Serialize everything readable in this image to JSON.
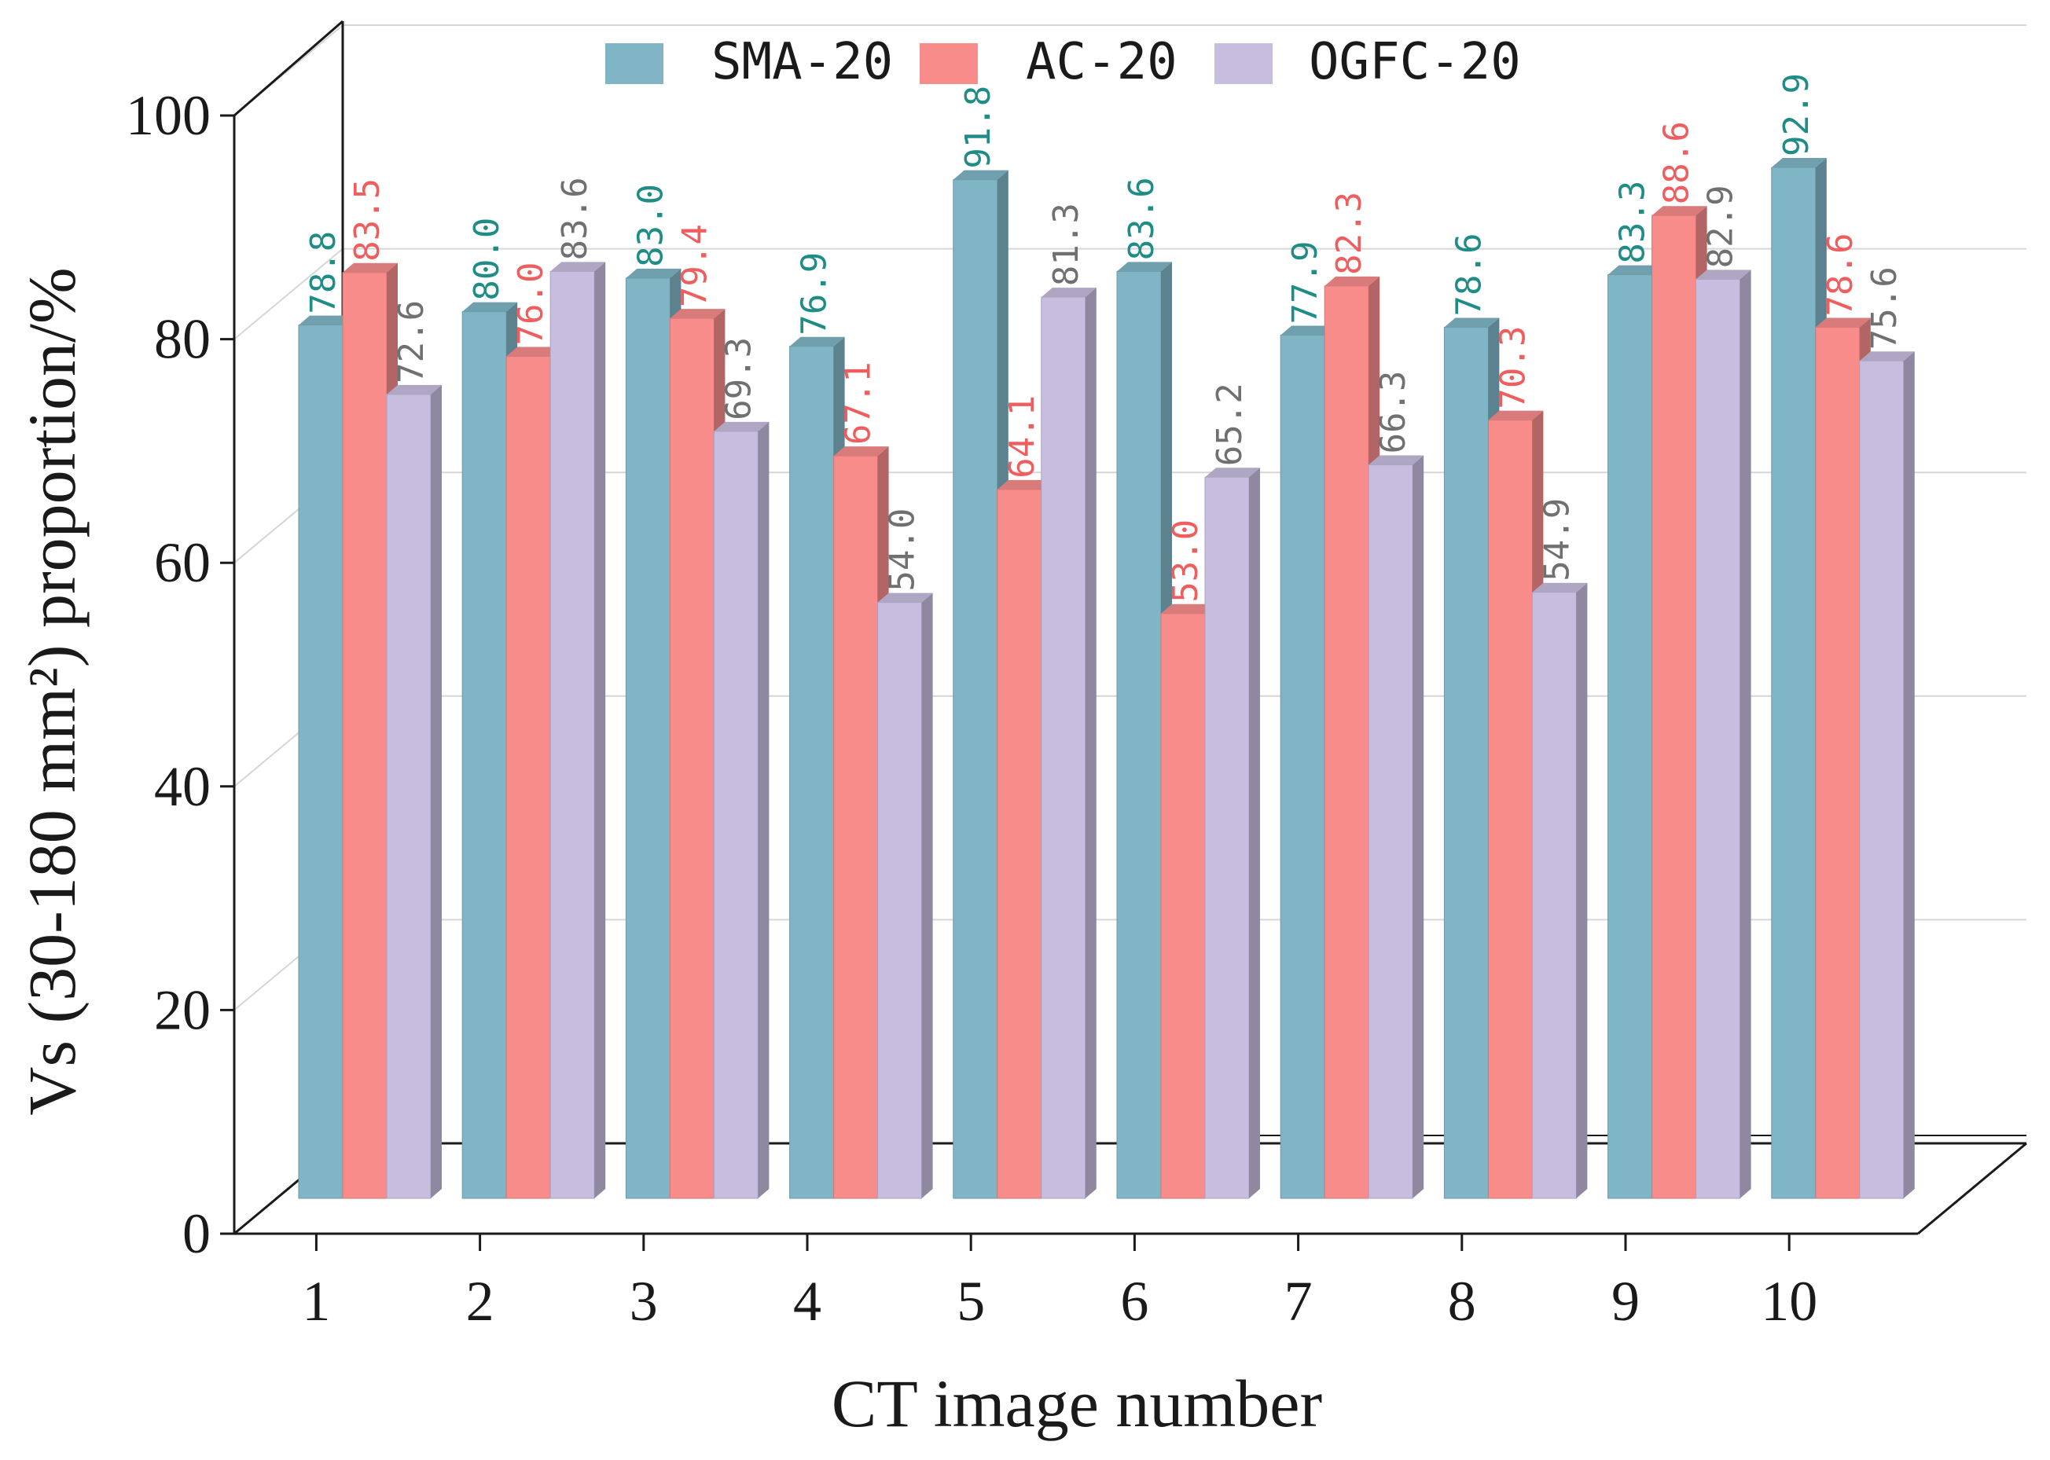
{
  "chart_data": {
    "type": "bar",
    "subtype": "3d-clustered-column",
    "title": "",
    "xlabel": "CT image number",
    "ylabel": "Vs (30-180 mm²) proportion/%",
    "categories": [
      "1",
      "2",
      "3",
      "4",
      "5",
      "6",
      "7",
      "8",
      "9",
      "10"
    ],
    "ylim": [
      0,
      100
    ],
    "yticks": [
      0,
      20,
      40,
      60,
      80,
      100
    ],
    "grid": true,
    "legend": "top-center",
    "series": [
      {
        "name": "SMA-20",
        "color": "#7fb5c5",
        "label_color": "#1f8c86",
        "values": [
          78.8,
          80.0,
          83.0,
          76.9,
          91.8,
          83.6,
          77.9,
          78.6,
          83.3,
          92.9
        ]
      },
      {
        "name": "AC-20",
        "color": "#f78c8b",
        "label_color": "#ef5e5e",
        "values": [
          83.5,
          76.0,
          79.4,
          67.1,
          64.1,
          53.0,
          82.3,
          70.3,
          88.6,
          78.6
        ]
      },
      {
        "name": "OGFC-20",
        "color": "#c7bddf",
        "label_color": "#707070",
        "values": [
          72.6,
          83.6,
          69.3,
          54.0,
          81.3,
          65.2,
          66.3,
          54.9,
          82.9,
          75.6
        ]
      }
    ],
    "data_labels": [
      [
        "78.8",
        "80.0",
        "83.0",
        "76.9",
        "91.8",
        "83.6",
        "77.9",
        "78.6",
        "83.3",
        "92.9"
      ],
      [
        "83.5",
        "76.0",
        "79.4",
        "67.1",
        "64.1",
        "53.0",
        "82.3",
        "70.3",
        "88.6",
        "78.6"
      ],
      [
        "72.6",
        "83.6",
        "69.3",
        "54.0",
        "81.3",
        "65.2",
        "66.3",
        "54.9",
        "82.9",
        "75.6"
      ]
    ]
  }
}
